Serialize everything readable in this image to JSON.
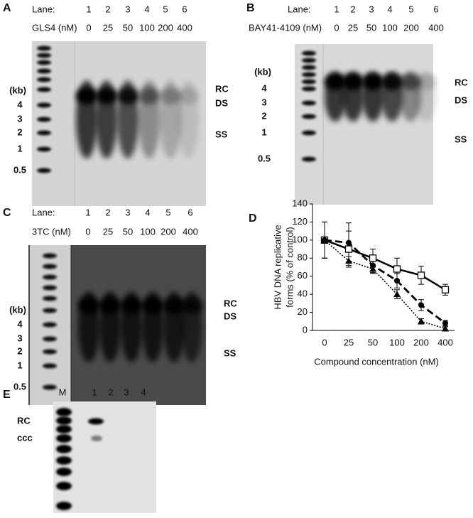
{
  "gels": [
    {
      "letter": "A",
      "lane_label": "Lane:",
      "lanes": [
        "1",
        "2",
        "3",
        "4",
        "5",
        "6"
      ],
      "compound_label": "GLS4 (nM)",
      "concentrations": [
        "0",
        "25",
        "50",
        "100",
        "200",
        "400"
      ],
      "size_unit": "(kb)",
      "sizes": [
        "4",
        "3",
        "2",
        "1",
        "0.5"
      ],
      "forms": [
        "RC",
        "DS",
        "SS"
      ]
    },
    {
      "letter": "B",
      "lane_label": "Lane:",
      "lanes": [
        "1",
        "2",
        "3",
        "4",
        "5",
        "6"
      ],
      "compound_label": "BAY41-4109 (nM)",
      "concentrations": [
        "0",
        "25",
        "50",
        "100",
        "200",
        "400"
      ],
      "size_unit": "(kb)",
      "sizes": [
        "4",
        "3",
        "2",
        "1",
        "0.5"
      ],
      "forms": [
        "RC",
        "DS",
        "SS"
      ]
    },
    {
      "letter": "C",
      "lane_label": "Lane:",
      "lanes": [
        "1",
        "2",
        "3",
        "4",
        "5",
        "6"
      ],
      "compound_label": "3TC (nM)",
      "concentrations": [
        "0",
        "25",
        "50",
        "100",
        "200",
        "400"
      ],
      "size_unit": "(kb)",
      "sizes": [
        "4",
        "3",
        "2",
        "1",
        "0.5"
      ],
      "forms": [
        "RC",
        "DS",
        "SS"
      ]
    }
  ],
  "chart_data": {
    "type": "line",
    "panel_label": "D",
    "categories": [
      "0",
      "25",
      "50",
      "100",
      "200",
      "400"
    ],
    "xlabel": "Compound concentration (nM)",
    "ylabel": [
      "HBV DNA replicative",
      "forms (% of control)"
    ],
    "ylim": [
      0,
      140
    ],
    "yticks": [
      0,
      20,
      40,
      60,
      80,
      100,
      120,
      140
    ],
    "series": [
      {
        "color": "#000000",
        "marker": "square",
        "line": "solid",
        "values": [
          100,
          90,
          80,
          68,
          61,
          45
        ],
        "errors": [
          20,
          20,
          10,
          12,
          10,
          6
        ]
      },
      {
        "color": "#000000",
        "marker": "circle",
        "line": "dashed",
        "values": [
          100,
          97,
          72,
          55,
          28,
          8
        ],
        "errors": [
          20,
          22,
          8,
          8,
          6,
          3
        ]
      },
      {
        "color": "#000000",
        "marker": "triangle",
        "line": "dotted",
        "values": [
          100,
          77,
          68,
          40,
          10,
          2
        ],
        "errors": [
          20,
          5,
          5,
          5,
          3,
          2
        ]
      }
    ]
  },
  "panel_e": {
    "letter": "E",
    "lanes": [
      "M",
      "1",
      "2",
      "3",
      "4"
    ],
    "forms": [
      "RC",
      "ccc"
    ]
  }
}
